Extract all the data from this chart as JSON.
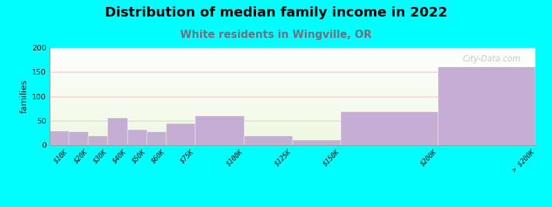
{
  "title": "Distribution of median family income in 2022",
  "subtitle": "White residents in Wingville, OR",
  "bar_edges": [
    0,
    10,
    20,
    30,
    40,
    50,
    60,
    75,
    100,
    125,
    150,
    200,
    250
  ],
  "bar_labels": [
    "$10K",
    "$20K",
    "$30K",
    "$40K",
    "$50K",
    "$60K",
    "$75K",
    "$100K",
    "$125K",
    "$150K",
    "$200K",
    "> $200K"
  ],
  "values": [
    28,
    27,
    19,
    56,
    31,
    27,
    44,
    59,
    19,
    10,
    68,
    160
  ],
  "bar_color": "#c4aed4",
  "background_color": "#00ffff",
  "ylabel": "families",
  "ylim": [
    0,
    200
  ],
  "yticks": [
    0,
    50,
    100,
    150,
    200
  ],
  "grid_color": "#f5c8cc",
  "title_fontsize": 14,
  "subtitle_fontsize": 11,
  "subtitle_color": "#7a6a7a",
  "watermark": "City-Data.com"
}
